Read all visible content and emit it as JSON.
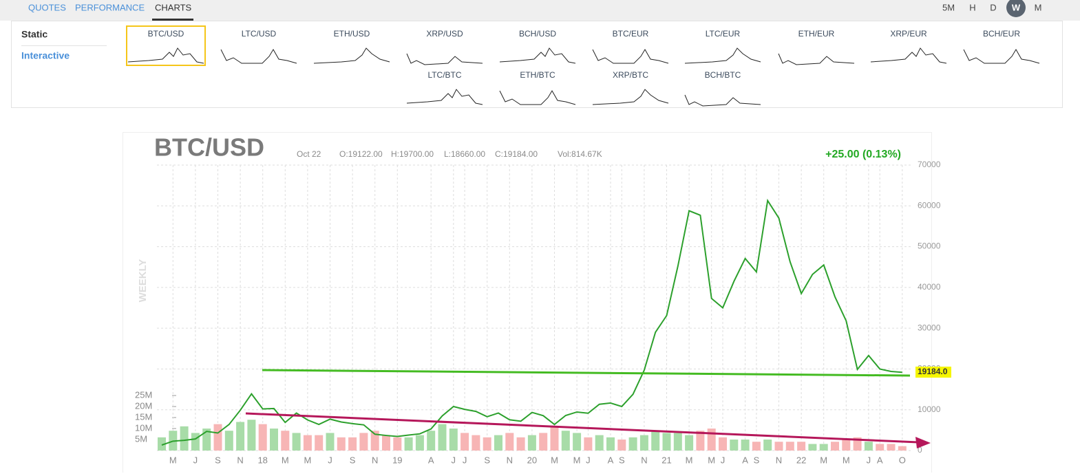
{
  "nav": {
    "tabs": [
      "QUOTES",
      "PERFORMANCE",
      "CHARTS"
    ],
    "timeframes": [
      "5M",
      "H",
      "D",
      "W",
      "M"
    ]
  },
  "sidebar": [
    "Static",
    "Interactive"
  ],
  "thumbnails": [
    "BTC/USD",
    "LTC/USD",
    "ETH/USD",
    "XRP/USD",
    "BCH/USD",
    "BTC/EUR",
    "LTC/EUR",
    "ETH/EUR",
    "XRP/EUR",
    "BCH/EUR"
  ],
  "thumbnails_row2": [
    "LTC/BTC",
    "ETH/BTC",
    "XRP/BTC",
    "BCH/BTC"
  ],
  "chart_data": {
    "type": "line",
    "title": "BTC/USD",
    "period_label": "WEEKLY",
    "date": "Oct 22",
    "open": "O:19122.00",
    "high": "H:19700.00",
    "low": "L:18660.00",
    "close": "C:19184.00",
    "volume_label": "Vol:814.67K",
    "change": "+25.00 (0.13%)",
    "last_label": "19184.0",
    "grid": true,
    "categories": [
      null,
      "M",
      null,
      "J",
      null,
      "S",
      null,
      "N",
      null,
      "18",
      null,
      "M",
      null,
      "M",
      null,
      "J",
      null,
      "S",
      null,
      "N",
      null,
      "19",
      null,
      null,
      "A",
      null,
      "J",
      "J",
      null,
      "S",
      null,
      "N",
      null,
      "20",
      null,
      "M",
      null,
      "M",
      "J",
      null,
      "A",
      "S",
      null,
      "N",
      null,
      "21",
      null,
      "M",
      null,
      "M",
      "J",
      null,
      "A",
      "S",
      null,
      "N",
      null,
      "22",
      null,
      "M",
      null,
      "M",
      null,
      "J",
      "A",
      null,
      "O"
    ],
    "series": [
      {
        "color": "#2ca02c",
        "values": [
          1350,
          2300,
          2500,
          2850,
          4700,
          4300,
          6400,
          9900,
          13900,
          10200,
          10300,
          6900,
          9200,
          7500,
          6400,
          7700,
          7000,
          6600,
          6300,
          4000,
          3700,
          3450,
          3800,
          4100,
          5300,
          8500,
          10800,
          10100,
          9600,
          8300,
          9200,
          7550,
          7200,
          9350,
          8550,
          6400,
          8600,
          9450,
          9150,
          11350,
          11650,
          10800,
          13800,
          19700,
          29000,
          33100,
          45200,
          58800,
          57700,
          37300,
          35000,
          41500,
          47100,
          43800,
          61300,
          57000,
          46300,
          38500,
          43200,
          45500,
          37700,
          31800,
          19900,
          23300,
          20000,
          19400,
          19184
        ]
      },
      {
        "type": "bar",
        "axis": "y2",
        "color": "#a8dca8",
        "values": [
          6000000,
          9000000,
          11000000,
          8000000,
          10000000,
          12000000,
          9000000,
          13000000,
          14000000,
          12000000,
          10000000,
          9000000,
          8000000,
          7000000,
          7000000,
          8000000,
          6000000,
          6000000,
          8000000,
          9000000,
          7000000,
          6000000,
          6000000,
          7000000,
          9000000,
          12000000,
          10000000,
          8000000,
          7000000,
          6000000,
          7000000,
          8000000,
          6000000,
          7000000,
          8000000,
          11000000,
          9000000,
          8000000,
          6000000,
          7000000,
          6000000,
          5000000,
          6000000,
          7000000,
          9000000,
          8000000,
          8000000,
          7000000,
          9000000,
          10000000,
          6000000,
          5000000,
          5000000,
          4000000,
          5000000,
          4000000,
          4000000,
          4000000,
          3000000,
          3000000,
          4000000,
          5000000,
          6000000,
          4000000,
          3000000,
          3000000,
          2000000
        ]
      }
    ],
    "ylim": [
      0,
      70000
    ],
    "yticks": [
      0,
      10000,
      20000,
      30000,
      40000,
      50000,
      60000,
      70000
    ],
    "y2lim": [
      0,
      25000000
    ],
    "y2ticks": [
      {
        "value": 5000000,
        "label": "5M"
      },
      {
        "value": 10000000,
        "label": "10M"
      },
      {
        "value": 15000000,
        "label": "15M"
      },
      {
        "value": 20000000,
        "label": "20M"
      },
      {
        "value": 25000000,
        "label": "25M"
      }
    ]
  }
}
